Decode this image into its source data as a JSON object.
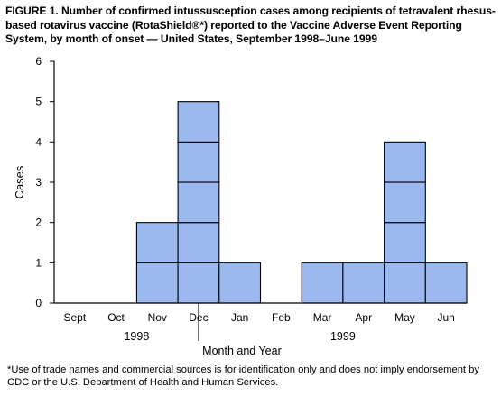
{
  "title": "FIGURE 1. Number of confirmed intussusception cases among recipients of tetravalent rhesus-based rotavirus vaccine (RotaShield®*) reported to the Vaccine Adverse Event Reporting System, by month of onset — United States, September 1998–June 1999",
  "footnote": "*Use of trade names and commercial sources is for identification only and does not imply endorsement by CDC or the U.S. Department of Health and Human Services.",
  "colors": {
    "bar_fill": "#9bb9ee",
    "bar_stroke": "#000000"
  },
  "chart_data": {
    "type": "bar",
    "categories": [
      "Sept",
      "Oct",
      "Nov",
      "Dec",
      "Jan",
      "Feb",
      "Mar",
      "Apr",
      "May",
      "Jun"
    ],
    "year_groups": [
      {
        "label": "1998",
        "categories": [
          "Sept",
          "Oct",
          "Nov",
          "Dec"
        ]
      },
      {
        "label": "1999",
        "categories": [
          "Jan",
          "Feb",
          "Mar",
          "Apr",
          "May",
          "Jun"
        ]
      }
    ],
    "values": [
      0,
      0,
      2,
      5,
      1,
      0,
      1,
      1,
      4,
      1
    ],
    "xlabel": "Month and Year",
    "ylabel": "Cases",
    "ylim": [
      0,
      6
    ],
    "yticks": [
      0,
      1,
      2,
      3,
      4,
      5,
      6
    ],
    "stacked_unit_boxes": true,
    "grid": false
  }
}
